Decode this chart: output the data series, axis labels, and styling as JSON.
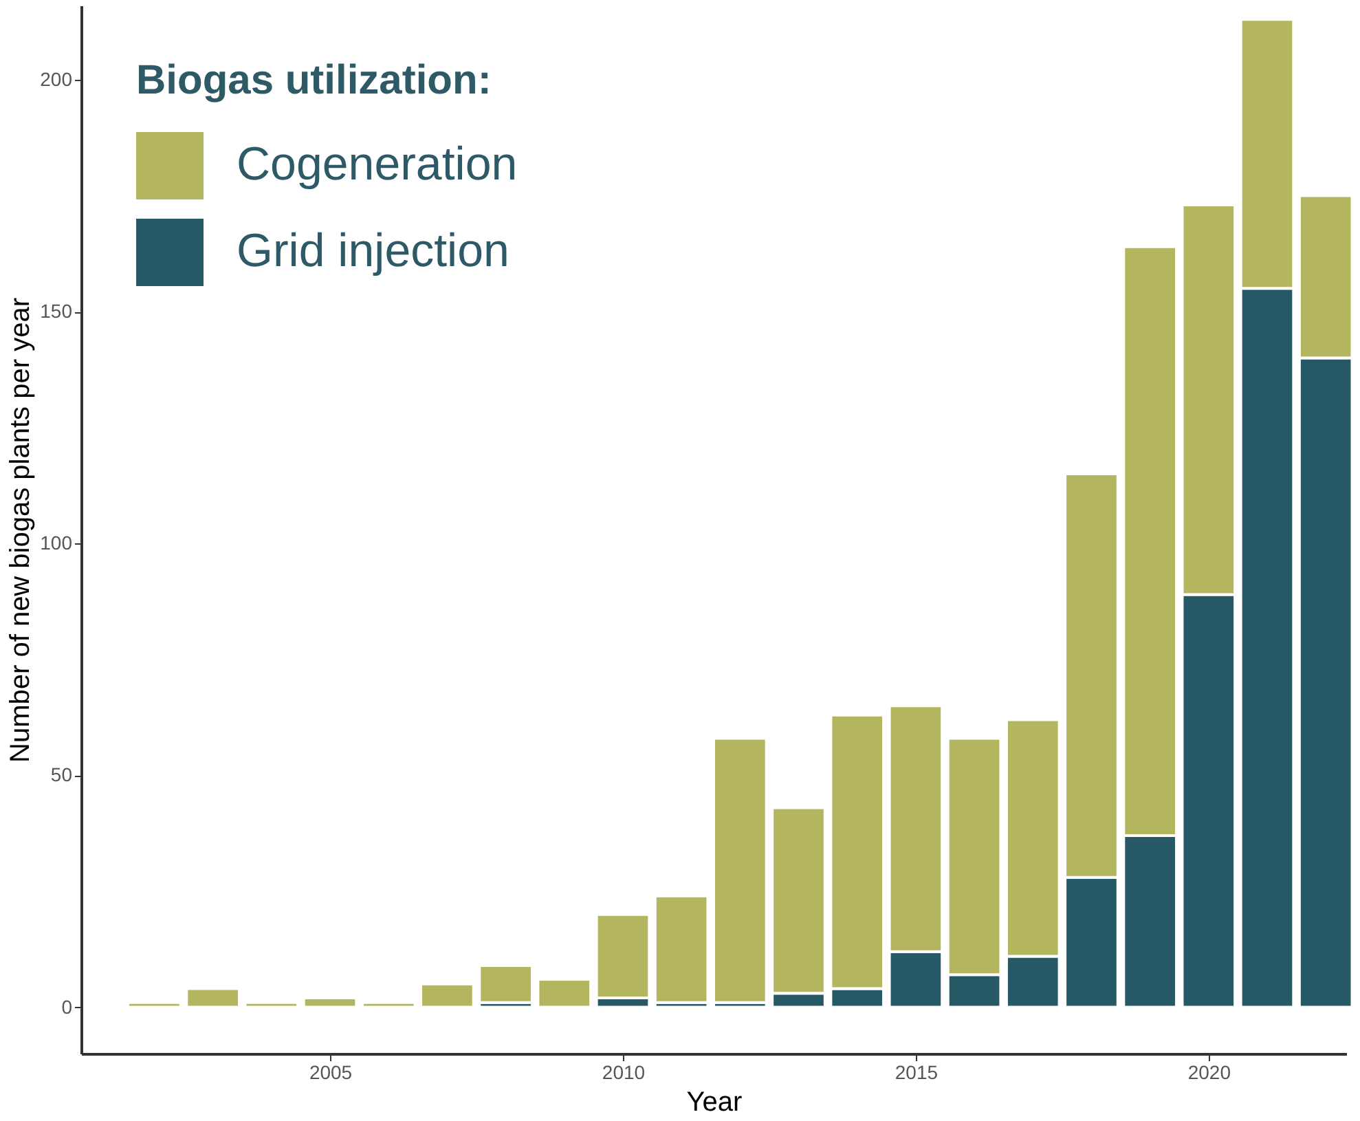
{
  "chart_data": {
    "type": "bar",
    "stacked": true,
    "xlabel": "Year",
    "ylabel": "Number of new biogas plants per year",
    "legend_title": "Biogas utilization:",
    "legend": "top left",
    "grid": false,
    "x": [
      2002,
      2003,
      2004,
      2005,
      2006,
      2007,
      2008,
      2009,
      2010,
      2011,
      2012,
      2013,
      2014,
      2015,
      2016,
      2017,
      2018,
      2019,
      2020,
      2021,
      2022
    ],
    "series": [
      {
        "name": "Grid injection",
        "color": "#275865",
        "values": [
          0,
          0,
          0,
          0,
          0,
          0,
          1,
          0,
          2,
          1,
          1,
          3,
          4,
          12,
          7,
          11,
          28,
          37,
          89,
          155,
          140
        ]
      },
      {
        "name": "Cogeneration",
        "color": "#b3b55f",
        "values": [
          1,
          4,
          1,
          2,
          1,
          5,
          8,
          6,
          18,
          23,
          57,
          40,
          59,
          53,
          51,
          51,
          87,
          127,
          84,
          58,
          35
        ]
      }
    ],
    "xlim": [
      2000.75,
      2022.35
    ],
    "xticks": [
      2005,
      2010,
      2015,
      2020
    ],
    "ylim": [
      -10,
      216
    ],
    "yticks": [
      0,
      50,
      100,
      150,
      200
    ]
  }
}
